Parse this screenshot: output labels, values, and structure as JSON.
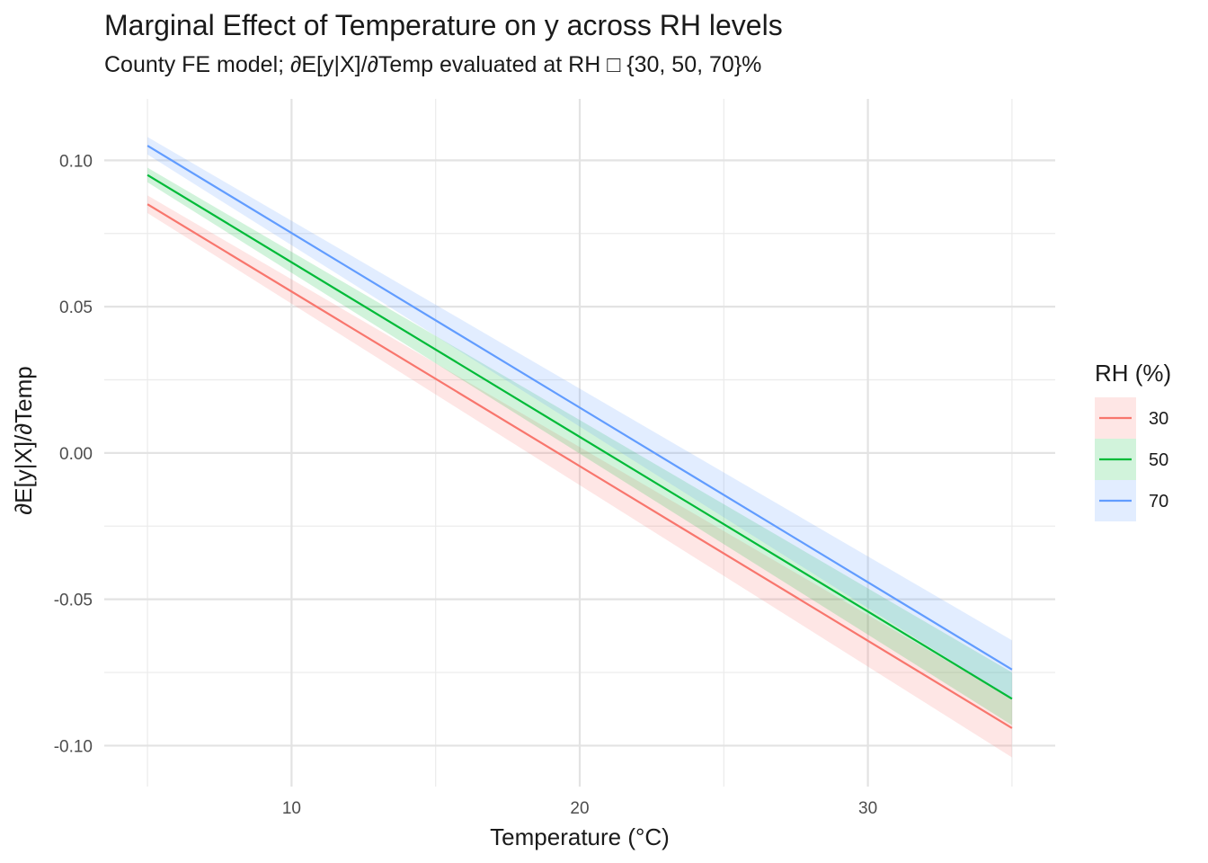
{
  "title": "Marginal Effect of Temperature on y across RH levels",
  "subtitle": "County FE model; ∂E[y|X]/∂Temp evaluated at RH □ {30, 50, 70}%",
  "chart_data": {
    "type": "line",
    "xlabel": "Temperature (°C)",
    "ylabel": "∂E[y|X]/∂Temp",
    "xlim": [
      3.5,
      36.5
    ],
    "ylim": [
      -0.114,
      0.121
    ],
    "x_ticks": [
      10,
      20,
      30
    ],
    "x_tick_labels": [
      "10",
      "20",
      "30"
    ],
    "x_minor_ticks": [
      5,
      15,
      25,
      35
    ],
    "y_ticks": [
      0.1,
      0.05,
      0.0,
      -0.05,
      -0.1
    ],
    "y_tick_labels": [
      "0.10",
      "0.05",
      "0.00",
      "-0.05",
      "-0.10"
    ],
    "y_minor_ticks": [
      0.075,
      0.025,
      -0.025,
      -0.075
    ],
    "grid": true,
    "legend_title": "RH (%)",
    "legend_position": "right",
    "x": [
      5,
      35
    ],
    "series": [
      {
        "name": "30",
        "color": "#F8766D",
        "fill": "#F8766D",
        "values": [
          0.085,
          -0.094
        ],
        "lower": [
          0.082,
          -0.104
        ],
        "upper": [
          0.088,
          -0.084
        ]
      },
      {
        "name": "50",
        "color": "#00BA38",
        "fill": "#00BA38",
        "values": [
          0.095,
          -0.084
        ],
        "lower": [
          0.0925,
          -0.093
        ],
        "upper": [
          0.0975,
          -0.075
        ]
      },
      {
        "name": "70",
        "color": "#619CFF",
        "fill": "#619CFF",
        "values": [
          0.105,
          -0.074
        ],
        "lower": [
          0.102,
          -0.084
        ],
        "upper": [
          0.108,
          -0.064
        ]
      }
    ]
  }
}
